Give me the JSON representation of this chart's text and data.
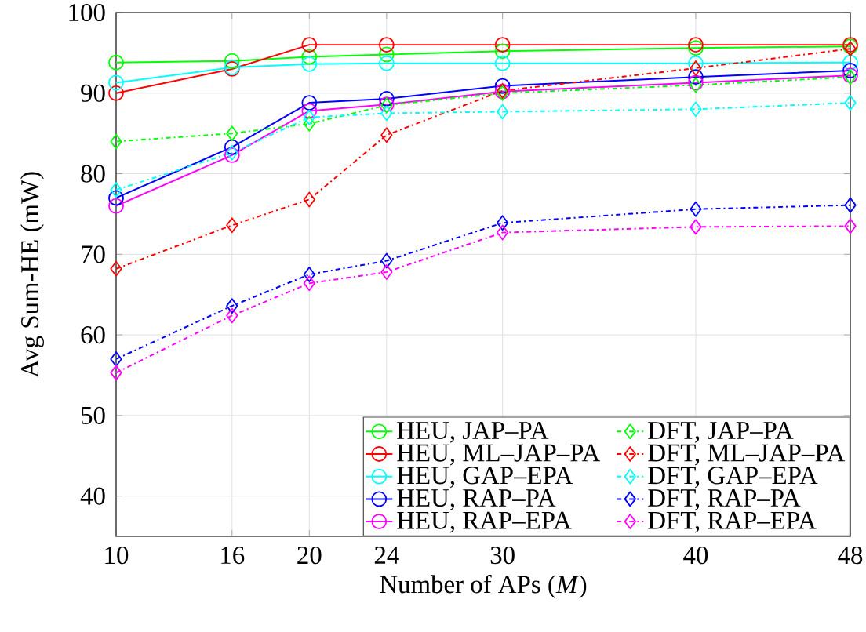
{
  "chart_data": {
    "type": "line",
    "xlabel": "Number of APs (*M*)",
    "ylabel": "Avg Sum-HE (mW)",
    "x": [
      10,
      16,
      20,
      24,
      30,
      40,
      48
    ],
    "xlim": [
      10,
      48
    ],
    "xticks": [
      10,
      16,
      20,
      24,
      30,
      40,
      48
    ],
    "ylim": [
      35,
      100
    ],
    "yticks": [
      40,
      50,
      60,
      70,
      80,
      90,
      100
    ],
    "grid": true,
    "legend": "bottom right",
    "series": [
      {
        "name": "HEU, JAP–PA",
        "color": "#00ff00",
        "marker": "circle",
        "line_style": "solid",
        "values": [
          93.8,
          94.0,
          94.5,
          94.8,
          95.2,
          95.6,
          95.8
        ]
      },
      {
        "name": "HEU, ML–JAP–PA",
        "color": "#ff0000",
        "marker": "circle",
        "line_style": "solid",
        "values": [
          90.0,
          93.0,
          96.0,
          96.0,
          96.0,
          96.0,
          96.0
        ]
      },
      {
        "name": "HEU, GAP–EPA",
        "color": "#00ffff",
        "marker": "circle",
        "line_style": "solid",
        "values": [
          91.3,
          93.2,
          93.6,
          93.7,
          93.7,
          93.7,
          93.8
        ]
      },
      {
        "name": "HEU, RAP–PA",
        "color": "#0000ff",
        "marker": "circle",
        "line_style": "solid",
        "values": [
          77.0,
          83.3,
          88.8,
          89.3,
          90.9,
          92.0,
          92.8
        ]
      },
      {
        "name": "HEU, RAP–EPA",
        "color": "#ff00ff",
        "marker": "circle",
        "line_style": "solid",
        "values": [
          76.0,
          82.3,
          87.8,
          88.6,
          90.2,
          91.3,
          92.2
        ]
      },
      {
        "name": "DFT, JAP–PA",
        "color": "#00ff00",
        "marker": "diamond",
        "line_style": "dashed",
        "values": [
          84.0,
          85.0,
          86.2,
          88.5,
          90.0,
          91.0,
          92.0
        ]
      },
      {
        "name": "DFT, ML–JAP–PA",
        "color": "#ff0000",
        "marker": "diamond",
        "line_style": "dashed",
        "values": [
          68.2,
          73.6,
          76.8,
          84.8,
          90.3,
          93.1,
          95.5
        ]
      },
      {
        "name": "DFT, GAP–EPA",
        "color": "#00ffff",
        "marker": "diamond",
        "line_style": "dashed",
        "values": [
          78.0,
          82.6,
          87.0,
          87.5,
          87.7,
          88.0,
          88.8
        ]
      },
      {
        "name": "DFT, RAP–PA",
        "color": "#0000ff",
        "marker": "diamond",
        "line_style": "dashed",
        "values": [
          57.0,
          63.6,
          67.5,
          69.2,
          73.9,
          75.6,
          76.1
        ]
      },
      {
        "name": "DFT, RAP–EPA",
        "color": "#ff00ff",
        "marker": "diamond",
        "line_style": "dashed",
        "values": [
          55.3,
          62.4,
          66.4,
          67.8,
          72.7,
          73.4,
          73.5
        ]
      }
    ]
  }
}
